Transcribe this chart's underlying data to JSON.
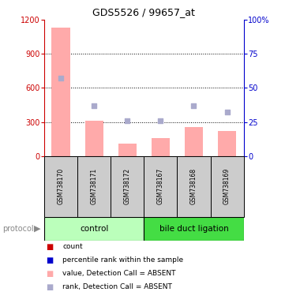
{
  "title": "GDS5526 / 99657_at",
  "samples": [
    "GSM738170",
    "GSM738171",
    "GSM738172",
    "GSM738167",
    "GSM738168",
    "GSM738169"
  ],
  "bar_values": [
    1130,
    310,
    110,
    160,
    255,
    220
  ],
  "rank_values": [
    57,
    37,
    26,
    26,
    37,
    32
  ],
  "bar_color": "#ffaaaa",
  "rank_color": "#aaaacc",
  "ylim_left": [
    0,
    1200
  ],
  "ylim_right": [
    0,
    100
  ],
  "yticks_left": [
    0,
    300,
    600,
    900,
    1200
  ],
  "yticks_right": [
    0,
    25,
    50,
    75,
    100
  ],
  "yticklabels_right": [
    "0",
    "25",
    "50",
    "75",
    "100%"
  ],
  "left_axis_color": "#cc0000",
  "right_axis_color": "#0000cc",
  "rank_square_size": 25,
  "legend_items": [
    {
      "label": "count",
      "color": "#cc0000"
    },
    {
      "label": "percentile rank within the sample",
      "color": "#0000cc"
    },
    {
      "label": "value, Detection Call = ABSENT",
      "color": "#ffaaaa"
    },
    {
      "label": "rank, Detection Call = ABSENT",
      "color": "#aaaacc"
    }
  ],
  "ctrl_color": "#bbffbb",
  "bdl_color": "#44dd44",
  "sample_box_color": "#cccccc"
}
